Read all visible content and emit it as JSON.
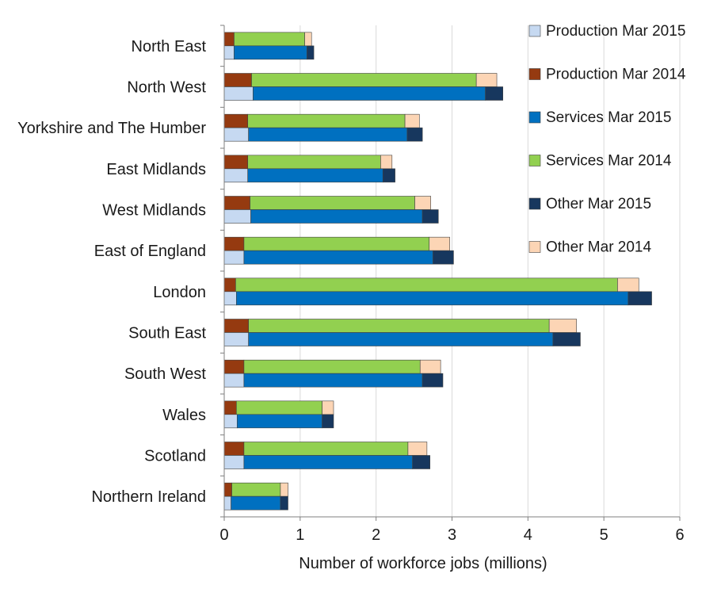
{
  "chart_data": {
    "type": "bar",
    "orientation": "horizontal",
    "stacked": true,
    "title": "",
    "xlabel": "Number of workforce jobs (millions)",
    "ylabel": "",
    "xlim": [
      0,
      6
    ],
    "xticks": [
      0,
      1,
      2,
      3,
      4,
      5,
      6
    ],
    "grid": "vertical gridlines",
    "legend_position": "right",
    "categories": [
      "North East",
      "North West",
      "Yorkshire and The Humber",
      "East Midlands",
      "West Midlands",
      "East of England",
      "London",
      "South East",
      "South West",
      "Wales",
      "Scotland",
      "Northern Ireland"
    ],
    "series": [
      {
        "name": "Production Mar 2015",
        "stack": "Mar 2015",
        "color": "#c6d9f1",
        "values": [
          0.13,
          0.38,
          0.32,
          0.31,
          0.35,
          0.26,
          0.16,
          0.32,
          0.26,
          0.17,
          0.26,
          0.09
        ]
      },
      {
        "name": "Production Mar 2014",
        "stack": "Mar 2014",
        "color": "#953a10",
        "values": [
          0.13,
          0.36,
          0.31,
          0.31,
          0.34,
          0.26,
          0.15,
          0.32,
          0.26,
          0.16,
          0.26,
          0.1
        ]
      },
      {
        "name": "Services Mar 2015",
        "stack": "Mar 2015",
        "color": "#0070c0",
        "values": [
          0.96,
          3.06,
          2.09,
          1.78,
          2.26,
          2.49,
          5.16,
          4.01,
          2.35,
          1.12,
          2.22,
          0.65
        ]
      },
      {
        "name": "Services Mar 2014",
        "stack": "Mar 2014",
        "color": "#92d050",
        "values": [
          0.93,
          2.96,
          2.07,
          1.75,
          2.17,
          2.44,
          5.03,
          3.96,
          2.32,
          1.13,
          2.16,
          0.64
        ]
      },
      {
        "name": "Other Mar 2015",
        "stack": "Mar 2015",
        "color": "#17375e",
        "values": [
          0.09,
          0.23,
          0.2,
          0.16,
          0.21,
          0.27,
          0.31,
          0.36,
          0.27,
          0.15,
          0.23,
          0.1
        ]
      },
      {
        "name": "Other Mar 2014",
        "stack": "Mar 2014",
        "color": "#fcd5b5",
        "values": [
          0.09,
          0.27,
          0.19,
          0.15,
          0.21,
          0.27,
          0.28,
          0.36,
          0.27,
          0.15,
          0.25,
          0.1
        ]
      }
    ],
    "legend_order": [
      "Production Mar 2015",
      "Production Mar 2014",
      "Services Mar 2015",
      "Services Mar 2014",
      "Other Mar 2015",
      "Other Mar 2014"
    ]
  }
}
